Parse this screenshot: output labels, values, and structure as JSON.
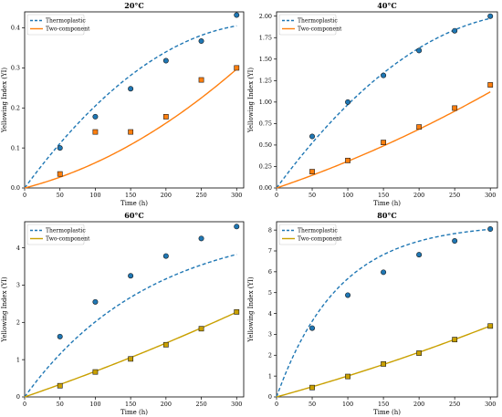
{
  "colors": {
    "thermoplastic": "#1f77b4",
    "two_component_orange": "#ff7f0e",
    "two_component_olive": "#c9a000",
    "axis": "#000000"
  },
  "chart_data": [
    {
      "type": "line",
      "title": "20°C",
      "xlabel": "Time (h)",
      "ylabel": "Yellowing Index (YI)",
      "xlim": [
        0,
        310
      ],
      "ylim": [
        0,
        0.44
      ],
      "xticks": [
        0,
        50,
        100,
        150,
        200,
        250,
        300
      ],
      "xtick_labels": [
        "0",
        "50",
        "100",
        "150",
        "200",
        "250",
        "300"
      ],
      "yticks": [
        0,
        0.1,
        0.2,
        0.3,
        0.4
      ],
      "ytick_labels": [
        "0.0",
        "0.1",
        "0.2",
        "0.3",
        "0.4"
      ],
      "legend_position": "top-left",
      "series": [
        {
          "name": "Thermoplastic",
          "style": "dashed",
          "marker": "circle",
          "color_key": "thermoplastic",
          "x": [
            50,
            100,
            150,
            200,
            250,
            300
          ],
          "y": [
            0.1,
            0.178,
            0.248,
            0.318,
            0.367,
            0.432
          ],
          "fit": {
            "a": 0.0024,
            "b": -3.5e-06
          }
        },
        {
          "name": "Two-component",
          "style": "solid",
          "marker": "square",
          "color_key": "two_component_orange",
          "x": [
            50,
            100,
            150,
            200,
            250,
            300
          ],
          "y": [
            0.035,
            0.14,
            0.14,
            0.178,
            0.27,
            0.3
          ],
          "fit": {
            "a": 0.00045,
            "b": 1.8e-06
          }
        }
      ]
    },
    {
      "type": "line",
      "title": "40°C",
      "xlabel": "Time (h)",
      "ylabel": "Yellowing Index (YI)",
      "xlim": [
        0,
        310
      ],
      "ylim": [
        0,
        2.05
      ],
      "xticks": [
        0,
        50,
        100,
        150,
        200,
        250,
        300
      ],
      "xtick_labels": [
        "0",
        "50",
        "100",
        "150",
        "200",
        "250",
        "300"
      ],
      "yticks": [
        0,
        0.25,
        0.5,
        0.75,
        1.0,
        1.25,
        1.5,
        1.75,
        2.0
      ],
      "ytick_labels": [
        "0.00",
        "0.25",
        "0.50",
        "0.75",
        "1.00",
        "1.25",
        "1.50",
        "1.75",
        "2.00"
      ],
      "legend_position": "top-left",
      "series": [
        {
          "name": "Thermoplastic",
          "style": "dashed",
          "marker": "circle",
          "color_key": "thermoplastic",
          "x": [
            50,
            100,
            150,
            200,
            250,
            300
          ],
          "y": [
            0.6,
            1.0,
            1.31,
            1.6,
            1.83,
            2.0
          ],
          "fit": {
            "a": 0.01126,
            "b": -1.56e-05
          }
        },
        {
          "name": "Two-component",
          "style": "solid",
          "marker": "square",
          "color_key": "two_component_orange",
          "x": [
            50,
            100,
            150,
            200,
            250,
            300
          ],
          "y": [
            0.19,
            0.32,
            0.53,
            0.71,
            0.93,
            1.2
          ],
          "fit": {
            "a": 0.0028,
            "b": 3.1e-06
          }
        }
      ]
    },
    {
      "type": "line",
      "title": "60°C",
      "xlabel": "Time (h)",
      "ylabel": "Yellowing Index (YI)",
      "xlim": [
        0,
        310
      ],
      "ylim": [
        0,
        4.7
      ],
      "xticks": [
        0,
        50,
        100,
        150,
        200,
        250,
        300
      ],
      "xtick_labels": [
        "0",
        "50",
        "100",
        "150",
        "200",
        "250",
        "300"
      ],
      "yticks": [
        0,
        1,
        2,
        3,
        4
      ],
      "ytick_labels": [
        "0",
        "1",
        "2",
        "3",
        "4"
      ],
      "legend_position": "top-left",
      "series": [
        {
          "name": "Thermoplastic",
          "style": "dashed",
          "marker": "circle",
          "color_key": "thermoplastic",
          "x": [
            50,
            100,
            150,
            200,
            250,
            300
          ],
          "y": [
            1.62,
            2.55,
            3.25,
            3.78,
            4.25,
            4.57
          ],
          "fit": {
            "a": 4.7,
            "b": 0.0056
          }
        },
        {
          "name": "Two-component",
          "style": "solid",
          "marker": "square",
          "color_key": "two_component_olive",
          "x": [
            50,
            100,
            150,
            200,
            250,
            300
          ],
          "y": [
            0.3,
            0.67,
            1.02,
            1.4,
            1.83,
            2.28
          ],
          "fit": {
            "a": 0.0065,
            "b": 3.6e-06
          }
        }
      ]
    },
    {
      "type": "line",
      "title": "80°C",
      "xlabel": "Time (h)",
      "ylabel": "Yellowing Index (YI)",
      "xlim": [
        0,
        310
      ],
      "ylim": [
        0,
        8.4
      ],
      "xticks": [
        0,
        50,
        100,
        150,
        200,
        250,
        300
      ],
      "xtick_labels": [
        "0",
        "50",
        "100",
        "150",
        "200",
        "250",
        "300"
      ],
      "yticks": [
        0,
        1,
        2,
        3,
        4,
        5,
        6,
        7,
        8
      ],
      "ytick_labels": [
        "0",
        "1",
        "2",
        "3",
        "4",
        "5",
        "6",
        "7",
        "8"
      ],
      "legend_position": "top-left",
      "series": [
        {
          "name": "Thermoplastic",
          "style": "dashed",
          "marker": "circle",
          "color_key": "thermoplastic",
          "x": [
            50,
            100,
            150,
            200,
            250,
            300
          ],
          "y": [
            3.3,
            4.88,
            5.98,
            6.82,
            7.48,
            8.05
          ],
          "fit": {
            "a": 8.3,
            "b": 0.0115
          }
        },
        {
          "name": "Two-component",
          "style": "solid",
          "marker": "square",
          "color_key": "two_component_olive",
          "x": [
            50,
            100,
            150,
            200,
            250,
            300
          ],
          "y": [
            0.45,
            0.98,
            1.58,
            2.1,
            2.75,
            3.4
          ],
          "fit": {
            "a": 0.0094,
            "b": 6.5e-06
          }
        }
      ]
    }
  ]
}
